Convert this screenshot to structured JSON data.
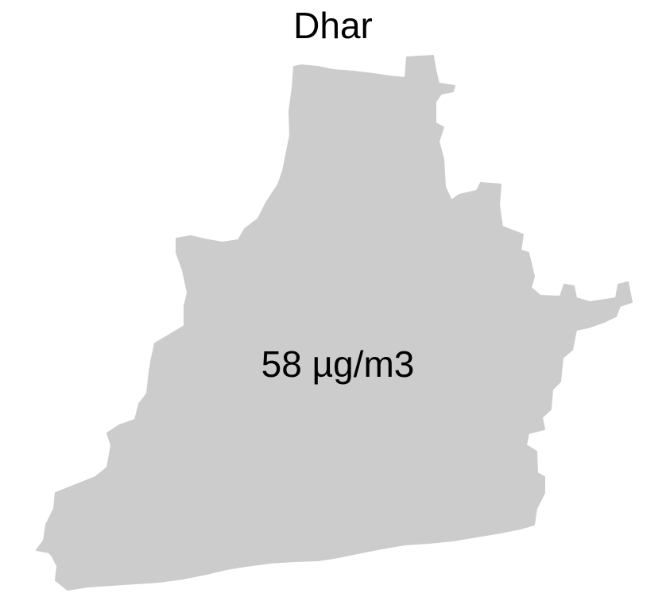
{
  "map": {
    "title": "Dhar",
    "region_value_label": "58 µg/m3",
    "region_fill_color": "#cccccc",
    "background_color": "#ffffff"
  }
}
